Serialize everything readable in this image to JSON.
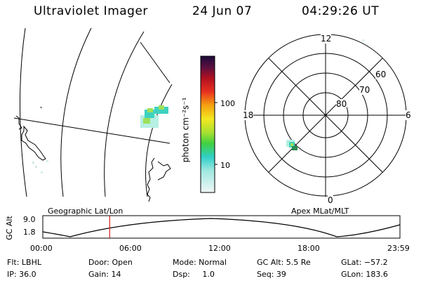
{
  "header": {
    "instrument": "Ultraviolet Imager",
    "date": "24 Jun 07",
    "time": "04:29:26 UT"
  },
  "colorbar": {
    "unit_label": "photon cm⁻²s⁻¹",
    "ticks": [
      "100",
      "10"
    ]
  },
  "polar_plot": {
    "lat_labels": [
      "80",
      "70",
      "60"
    ],
    "mlt_labels": [
      "12",
      "6",
      "0",
      "18"
    ]
  },
  "orbit_panel": {
    "left_title": "Geographic Lat/Lon",
    "right_title": "Apex MLat/MLT",
    "axis_label": "GC Alt",
    "y_ticks": [
      "9.0",
      "1.8"
    ],
    "x_ticks": [
      "00:00",
      "06:00",
      "12:00",
      "18:00",
      "23:59"
    ],
    "current_time_hours": 4.49
  },
  "status": {
    "flt": "Flt: LBHL",
    "ip": "IP: 36.0",
    "door": "Door: Open",
    "gain": "Gain: 14",
    "mode": "Mode: Normal",
    "dsp": "Dsp:     1.0",
    "gcalt": "GC Alt: 5.5 Re",
    "seq": "Seq: 39",
    "glat": "GLat: −57.2",
    "glon": "GLon: 183.6"
  },
  "colors": {
    "emission_core": "#2a8a52",
    "emission_mid": "#3ed2c0",
    "emission_bright": "#9ee05a",
    "marker": "#d81b1b"
  }
}
